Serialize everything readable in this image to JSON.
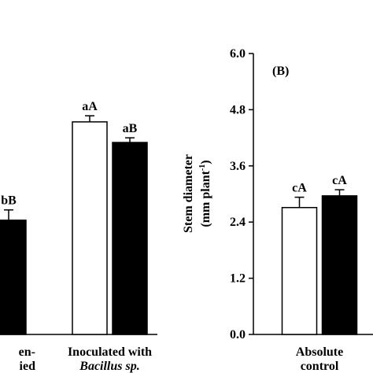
{
  "chart_data": [
    {
      "type": "bar",
      "categories": [
        [
          "en-",
          "ied"
        ],
        [
          "Inoculated with",
          "Bacillus sp."
        ]
      ],
      "ylim": [
        0,
        6
      ],
      "series": [
        {
          "color": "#ffffff",
          "values": [
            null,
            4.54
          ],
          "errors": [
            null,
            0.13
          ],
          "letters": [
            null,
            "aA"
          ]
        },
        {
          "color": "#000000",
          "values": [
            2.44,
            4.1
          ],
          "errors": [
            0.22,
            0.1
          ],
          "letters": [
            "bB",
            "aB"
          ]
        }
      ]
    },
    {
      "type": "bar",
      "title": "(B)",
      "ylabel": "Stem diameter",
      "ylabel_unit": "(mm plant",
      "ylabel_sup": "-1",
      "ylabel_end": ")",
      "categories": [
        [
          "Absolute",
          "control"
        ]
      ],
      "ylim": [
        0,
        6
      ],
      "yticks": [
        {
          "value": 0,
          "label": "0.0"
        },
        {
          "value": 1.2,
          "label": "1.2"
        },
        {
          "value": 2.4,
          "label": "2.4"
        },
        {
          "value": 3.6,
          "label": "3.6"
        },
        {
          "value": 4.8,
          "label": "4.8"
        },
        {
          "value": 6,
          "label": "6.0"
        }
      ],
      "series": [
        {
          "color": "#ffffff",
          "values": [
            2.71
          ],
          "errors": [
            0.22
          ],
          "letters": [
            "cA"
          ]
        },
        {
          "color": "#000000",
          "values": [
            2.96
          ],
          "errors": [
            0.13
          ],
          "letters": [
            "cA"
          ]
        }
      ]
    }
  ]
}
